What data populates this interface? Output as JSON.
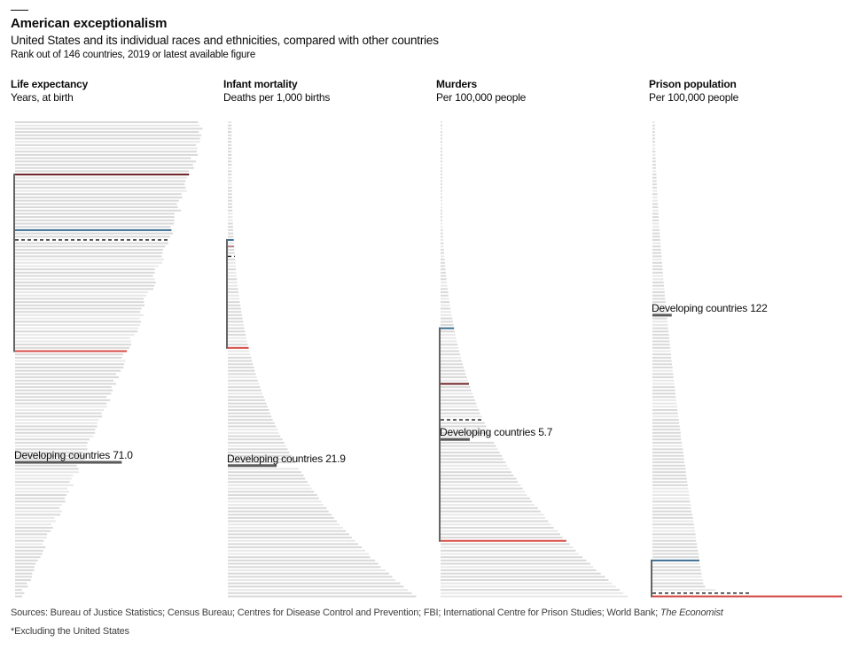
{
  "chart_data": {
    "type": "bar",
    "title": "American exceptionalism",
    "subtitle": "United States and its individual races and ethnicities, compared with other countries",
    "note": "Rank out of 146 countries, 2019 or latest available figure",
    "total_countries": 146,
    "colors": {
      "country_bar": "#d9d9d9",
      "country_bar_alt": "#e8e8e8",
      "developing": "#5a5a5a",
      "highlight_blue": "#3c6e91",
      "highlight_darkred": "#6b1f24",
      "highlight_pink": "#b5858a",
      "highlight_red": "#d64b45",
      "us_dashed": "#111111",
      "bracket": "#111111"
    },
    "panels": [
      {
        "title": "Life expectancy",
        "unit": "Years, at birth",
        "value_range": [
          53,
          85
        ],
        "top_value": 84.5,
        "bottom_value": 54,
        "curve": "linear",
        "developing": {
          "label": "Developing countries 71.0",
          "value": 71.0,
          "rank": 105
        },
        "highlights": [
          {
            "series": "darkred",
            "rank": 17
          },
          {
            "series": "blue",
            "rank": 34
          },
          {
            "series": "dashed",
            "rank": 37
          },
          {
            "series": "red",
            "rank": 71
          }
        ],
        "bracket_ranks": [
          17,
          71
        ]
      },
      {
        "title": "Infant mortality",
        "unit": "Deaths per 1,000 births",
        "value_range": [
          0,
          85
        ],
        "top_value": 1.7,
        "bottom_value": 84,
        "curve": "convex",
        "developing": {
          "label": "Developing countries 21.9",
          "value": 21.9,
          "rank": 106
        },
        "highlights": [
          {
            "series": "blue",
            "rank": 37
          },
          {
            "series": "pink",
            "rank": 39
          },
          {
            "series": "dashed",
            "rank": 42
          },
          {
            "series": "red",
            "rank": 70
          }
        ],
        "bracket_ranks": [
          37,
          70
        ]
      },
      {
        "title": "Murders",
        "unit": "Per 100,000 people",
        "value_range": [
          0,
          37
        ],
        "top_value": 0.1,
        "bottom_value": 36.5,
        "curve": "convex",
        "developing": {
          "label": "Developing countries 5.7",
          "value": 5.7,
          "rank": 98
        },
        "highlights": [
          {
            "series": "blue",
            "rank": 64
          },
          {
            "series": "darkred",
            "rank": 81
          },
          {
            "series": "dashed",
            "rank": 92
          },
          {
            "series": "red",
            "rank": 129
          }
        ],
        "bracket_ranks": [
          64,
          129
        ]
      },
      {
        "title": "Prison population",
        "unit": "Per 100,000 people",
        "value_range": [
          0,
          1200
        ],
        "top_value": 15,
        "bottom_value": 1180,
        "curve": "prison",
        "developing": {
          "label": "Developing countries 122",
          "value": 122,
          "rank": 60
        },
        "highlights": [
          {
            "series": "blue",
            "rank": 135
          },
          {
            "series": "dashed",
            "rank": 145
          },
          {
            "series": "red",
            "rank": 146
          }
        ],
        "bracket_ranks": [
          135,
          146
        ]
      }
    ],
    "footer": {
      "sources_prefix": "Sources: Bureau of Justice Statistics; Census Bureau; Centres for Disease Control and Prevention; FBI; International Centre for Prison Studies; World Bank; ",
      "sources_italic": "The Economist",
      "footnote": "*Excluding the United States"
    }
  }
}
